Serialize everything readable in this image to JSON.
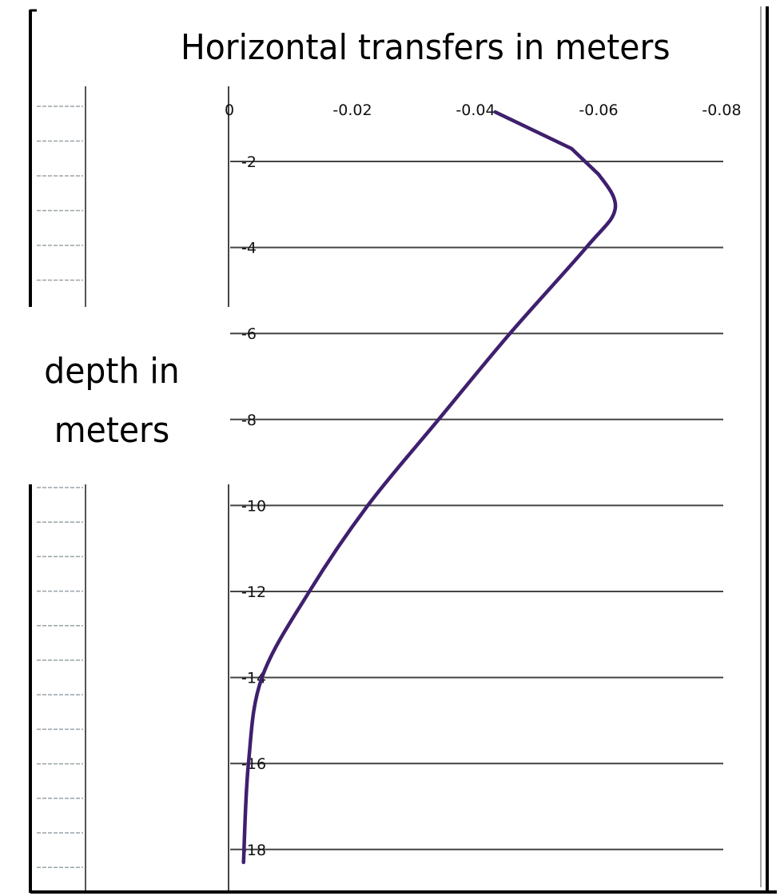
{
  "chart_data": {
    "type": "line",
    "title": "Horizontal transfers in meters",
    "xlabel": "Horizontal transfers in meters",
    "ylabel": "depth in meters",
    "ylabel_lines": [
      "depth in",
      "meters"
    ],
    "x_axis_position": "top",
    "x_ticks": [
      "0",
      "-0.02",
      "-0.04",
      "-0.06",
      "-0.08"
    ],
    "y_ticks": [
      "-2",
      "-4",
      "-6",
      "-8",
      "-10",
      "-12",
      "-14",
      "-16",
      "-18"
    ],
    "xlim": [
      0,
      -0.08
    ],
    "ylim": [
      0,
      -19
    ],
    "grid": "horizontal",
    "legend": "none",
    "series": [
      {
        "name": "Horizontal transfer",
        "color": "#3f1f6e",
        "x": [
          -0.0432,
          -0.0556,
          -0.06,
          -0.0627,
          -0.058,
          -0.0456,
          -0.034,
          -0.0225,
          -0.013,
          -0.0053,
          -0.0031,
          -0.0023
        ],
        "y": [
          -0.85,
          -1.7,
          -2.3,
          -3.1,
          -4.0,
          -6.0,
          -8.0,
          -10.0,
          -12.0,
          -14.0,
          -16.0,
          -18.3
        ]
      }
    ]
  },
  "labels": {
    "title": "Horizontal transfers in meters",
    "ylabel_line1": "depth in",
    "ylabel_line2": "meters"
  },
  "colors": {
    "curve": "#3f1f6e",
    "gridline": "#444444",
    "frame": "#000000"
  }
}
